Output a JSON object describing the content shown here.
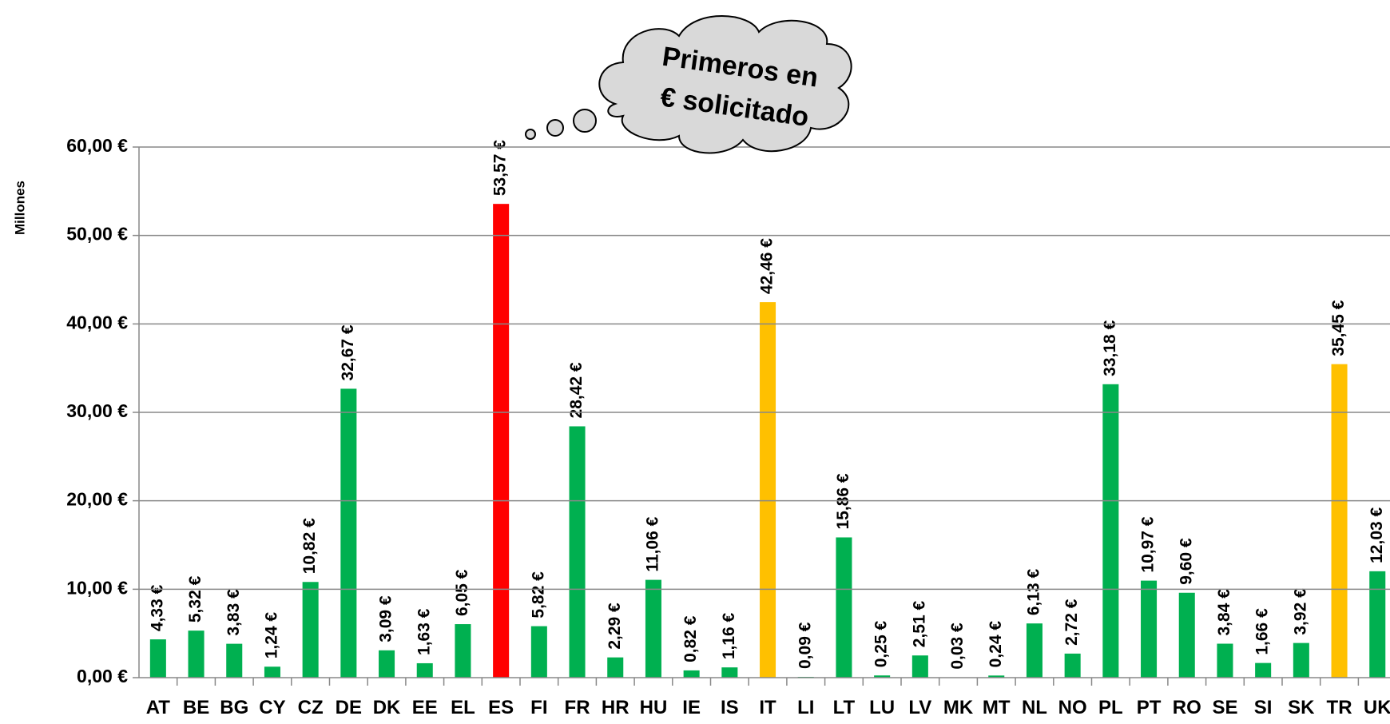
{
  "chart_data": {
    "type": "bar",
    "y_axis_label": "Millones",
    "annotation": [
      "Primeros en",
      "€ solicitado"
    ],
    "categories": [
      "AT",
      "BE",
      "BG",
      "CY",
      "CZ",
      "DE",
      "DK",
      "EE",
      "EL",
      "ES",
      "FI",
      "FR",
      "HR",
      "HU",
      "IE",
      "IS",
      "IT",
      "LI",
      "LT",
      "LU",
      "LV",
      "MK",
      "MT",
      "NL",
      "NO",
      "PL",
      "PT",
      "RO",
      "SE",
      "SI",
      "SK",
      "TR",
      "UK"
    ],
    "values": [
      4.33,
      5.32,
      3.83,
      1.24,
      10.82,
      32.67,
      3.09,
      1.63,
      6.05,
      53.57,
      5.82,
      28.42,
      2.29,
      11.06,
      0.82,
      1.16,
      42.46,
      0.09,
      15.86,
      0.25,
      2.51,
      0.03,
      0.24,
      6.13,
      2.72,
      33.18,
      10.97,
      9.6,
      3.84,
      1.66,
      3.92,
      35.45,
      12.03
    ],
    "value_labels": [
      "4,33 €",
      "5,32 €",
      "3,83 €",
      "1,24 €",
      "10,82 €",
      "32,67 €",
      "3,09 €",
      "1,63 €",
      "6,05 €",
      "53,57 €",
      "5,82 €",
      "28,42 €",
      "2,29 €",
      "11,06 €",
      "0,82 €",
      "1,16 €",
      "42,46 €",
      "0,09 €",
      "15,86 €",
      "0,25 €",
      "2,51 €",
      "0,03 €",
      "0,24 €",
      "6,13 €",
      "2,72 €",
      "33,18 €",
      "10,97 €",
      "9,60 €",
      "3,84 €",
      "1,66 €",
      "3,92 €",
      "35,45 €",
      "12,03 €"
    ],
    "colors": [
      "#00b050",
      "#00b050",
      "#00b050",
      "#00b050",
      "#00b050",
      "#00b050",
      "#00b050",
      "#00b050",
      "#00b050",
      "#ff0000",
      "#00b050",
      "#00b050",
      "#00b050",
      "#00b050",
      "#00b050",
      "#00b050",
      "#ffc000",
      "#00b050",
      "#00b050",
      "#00b050",
      "#00b050",
      "#00b050",
      "#00b050",
      "#00b050",
      "#00b050",
      "#00b050",
      "#00b050",
      "#00b050",
      "#00b050",
      "#00b050",
      "#00b050",
      "#ffc000",
      "#00b050"
    ],
    "ylim": [
      0,
      60
    ],
    "yticks": [
      {
        "value": 0,
        "label": "0,00 €"
      },
      {
        "value": 10,
        "label": "10,00 €"
      },
      {
        "value": 20,
        "label": "20,00 €"
      },
      {
        "value": 30,
        "label": "30,00 €"
      },
      {
        "value": 40,
        "label": "40,00 €"
      },
      {
        "value": 50,
        "label": "50,00 €"
      },
      {
        "value": 60,
        "label": "60,00 €"
      }
    ],
    "grid": true
  }
}
